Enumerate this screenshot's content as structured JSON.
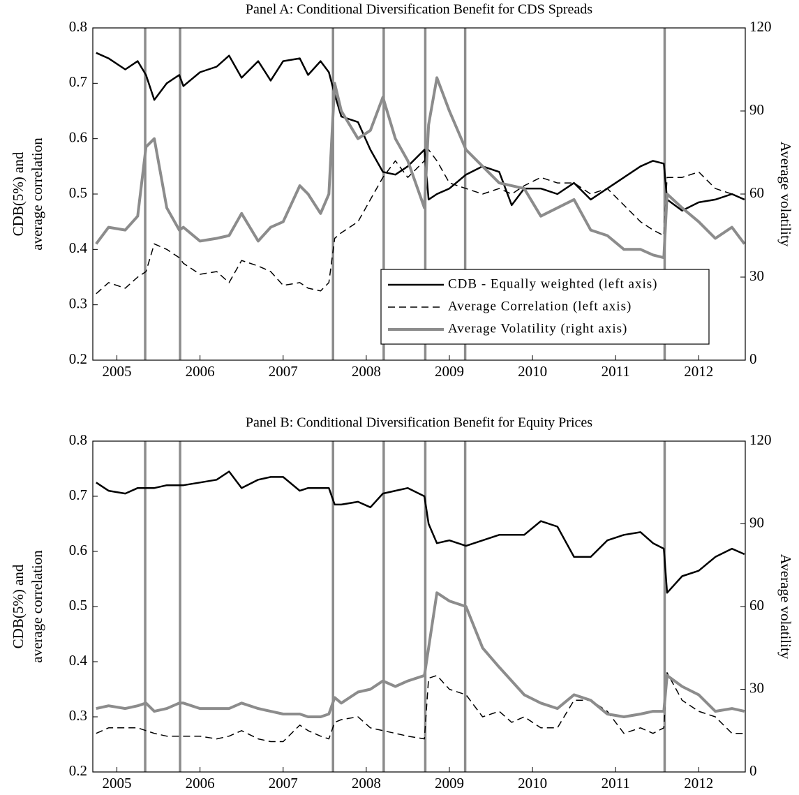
{
  "chart_data": [
    {
      "type": "line",
      "title": "Panel A: Conditional Diversification Benefit for CDS Spreads",
      "ylabel": [
        "CDB(5%) and",
        "average correlation"
      ],
      "y2label": "Average volatility",
      "xlim": [
        2004.71,
        2012.56
      ],
      "xticks": [
        2005,
        2006,
        2007,
        2008,
        2009,
        2010,
        2011,
        2012
      ],
      "ylim": [
        0.2,
        0.8
      ],
      "yticks": [
        0.2,
        0.3,
        0.4,
        0.5,
        0.6,
        0.7,
        0.8
      ],
      "y2lim": [
        0,
        120
      ],
      "y2ticks": [
        0,
        30,
        60,
        90,
        120
      ],
      "legend": "lower right",
      "events": [
        2005.34,
        2005.76,
        2007.6,
        2008.21,
        2008.71,
        2009.19,
        2011.59
      ],
      "x": [
        2004.75,
        2004.9,
        2005.1,
        2005.25,
        2005.35,
        2005.45,
        2005.6,
        2005.75,
        2005.8,
        2006.0,
        2006.2,
        2006.35,
        2006.5,
        2006.7,
        2006.85,
        2007.0,
        2007.2,
        2007.3,
        2007.45,
        2007.55,
        2007.62,
        2007.7,
        2007.9,
        2008.05,
        2008.2,
        2008.35,
        2008.5,
        2008.7,
        2008.75,
        2008.85,
        2009.0,
        2009.2,
        2009.4,
        2009.6,
        2009.75,
        2009.9,
        2010.1,
        2010.3,
        2010.5,
        2010.7,
        2010.9,
        2011.1,
        2011.3,
        2011.45,
        2011.58,
        2011.62,
        2011.8,
        2012.0,
        2012.2,
        2012.4,
        2012.55
      ],
      "series": [
        {
          "name": "CDB - Equally weighted (left axis)",
          "color": "#000000",
          "dashed": false,
          "values": [
            0.755,
            0.745,
            0.725,
            0.74,
            0.715,
            0.67,
            0.7,
            0.715,
            0.695,
            0.72,
            0.73,
            0.75,
            0.71,
            0.74,
            0.705,
            0.74,
            0.745,
            0.715,
            0.74,
            0.72,
            0.68,
            0.64,
            0.63,
            0.58,
            0.54,
            0.535,
            0.55,
            0.58,
            0.49,
            0.5,
            0.51,
            0.535,
            0.55,
            0.54,
            0.48,
            0.51,
            0.51,
            0.5,
            0.52,
            0.49,
            0.51,
            0.53,
            0.55,
            0.56,
            0.555,
            0.49,
            0.47,
            0.485,
            0.49,
            0.5,
            0.49
          ]
        },
        {
          "name": "Average Correlation (left axis)",
          "color": "#000000",
          "dashed": true,
          "values": [
            0.32,
            0.34,
            0.33,
            0.35,
            0.36,
            0.41,
            0.4,
            0.385,
            0.375,
            0.355,
            0.36,
            0.34,
            0.38,
            0.37,
            0.36,
            0.335,
            0.34,
            0.33,
            0.325,
            0.34,
            0.42,
            0.43,
            0.45,
            0.49,
            0.53,
            0.56,
            0.53,
            0.56,
            0.58,
            0.56,
            0.52,
            0.51,
            0.5,
            0.51,
            0.5,
            0.515,
            0.53,
            0.52,
            0.52,
            0.5,
            0.51,
            0.48,
            0.45,
            0.435,
            0.425,
            0.53,
            0.53,
            0.54,
            0.51,
            0.5,
            0.49
          ]
        },
        {
          "name": "Average Volatility (right axis)",
          "color": "#8c8c8c",
          "dashed": false,
          "axis": "y2",
          "values": [
            42,
            48,
            47,
            52,
            77,
            80,
            55,
            47,
            48,
            43,
            44,
            45,
            53,
            43,
            48,
            50,
            63,
            60,
            53,
            60,
            100,
            90,
            80,
            83,
            95,
            80,
            72,
            55,
            85,
            102,
            90,
            76,
            70,
            64,
            63,
            62,
            52,
            55,
            58,
            47,
            45,
            40,
            40,
            38,
            37,
            60,
            55,
            50,
            44,
            48,
            42
          ]
        }
      ]
    },
    {
      "type": "line",
      "title": "Panel B: Conditional Diversification Benefit for Equity Prices",
      "ylabel": [
        "CDB(5%) and",
        "average correlation"
      ],
      "y2label": "Average volatility",
      "xlim": [
        2004.71,
        2012.56
      ],
      "xticks": [
        2005,
        2006,
        2007,
        2008,
        2009,
        2010,
        2011,
        2012
      ],
      "ylim": [
        0.2,
        0.8
      ],
      "yticks": [
        0.2,
        0.3,
        0.4,
        0.5,
        0.6,
        0.7,
        0.8
      ],
      "y2lim": [
        0,
        120
      ],
      "y2ticks": [
        0,
        30,
        60,
        90,
        120
      ],
      "events": [
        2005.34,
        2005.76,
        2007.6,
        2008.21,
        2008.71,
        2009.19,
        2011.59
      ],
      "x": [
        2004.75,
        2004.9,
        2005.1,
        2005.25,
        2005.35,
        2005.45,
        2005.6,
        2005.75,
        2005.8,
        2006.0,
        2006.2,
        2006.35,
        2006.5,
        2006.7,
        2006.85,
        2007.0,
        2007.2,
        2007.3,
        2007.45,
        2007.55,
        2007.62,
        2007.7,
        2007.9,
        2008.05,
        2008.2,
        2008.35,
        2008.5,
        2008.7,
        2008.75,
        2008.85,
        2009.0,
        2009.2,
        2009.4,
        2009.6,
        2009.75,
        2009.9,
        2010.1,
        2010.3,
        2010.5,
        2010.7,
        2010.9,
        2011.1,
        2011.3,
        2011.45,
        2011.58,
        2011.62,
        2011.8,
        2012.0,
        2012.2,
        2012.4,
        2012.55
      ],
      "series": [
        {
          "name": "CDB - Equally weighted (left axis)",
          "color": "#000000",
          "dashed": false,
          "values": [
            0.725,
            0.71,
            0.705,
            0.715,
            0.715,
            0.715,
            0.72,
            0.72,
            0.72,
            0.725,
            0.73,
            0.745,
            0.715,
            0.73,
            0.735,
            0.735,
            0.71,
            0.715,
            0.715,
            0.715,
            0.685,
            0.685,
            0.69,
            0.68,
            0.705,
            0.71,
            0.715,
            0.7,
            0.65,
            0.615,
            0.62,
            0.61,
            0.62,
            0.63,
            0.63,
            0.63,
            0.655,
            0.645,
            0.59,
            0.59,
            0.62,
            0.63,
            0.635,
            0.615,
            0.605,
            0.525,
            0.555,
            0.565,
            0.59,
            0.605,
            0.595
          ]
        },
        {
          "name": "Average Correlation (left axis)",
          "color": "#000000",
          "dashed": true,
          "values": [
            0.27,
            0.28,
            0.28,
            0.28,
            0.275,
            0.27,
            0.265,
            0.265,
            0.265,
            0.265,
            0.26,
            0.265,
            0.275,
            0.26,
            0.255,
            0.255,
            0.285,
            0.275,
            0.265,
            0.26,
            0.29,
            0.295,
            0.3,
            0.28,
            0.275,
            0.27,
            0.265,
            0.26,
            0.37,
            0.375,
            0.35,
            0.34,
            0.3,
            0.31,
            0.29,
            0.3,
            0.28,
            0.28,
            0.33,
            0.33,
            0.31,
            0.27,
            0.28,
            0.27,
            0.28,
            0.38,
            0.33,
            0.31,
            0.3,
            0.27,
            0.27
          ]
        },
        {
          "name": "Average Volatility (right axis)",
          "color": "#8c8c8c",
          "dashed": false,
          "axis": "y2",
          "values": [
            23,
            24,
            23,
            24,
            25,
            22,
            23,
            25,
            25,
            23,
            23,
            23,
            25,
            23,
            22,
            21,
            21,
            20,
            20,
            21,
            27,
            25,
            29,
            30,
            33,
            31,
            33,
            35,
            45,
            65,
            62,
            60,
            45,
            38,
            33,
            28,
            25,
            23,
            28,
            26,
            21,
            20,
            21,
            22,
            22,
            35,
            31,
            28,
            22,
            23,
            22
          ]
        }
      ]
    }
  ]
}
